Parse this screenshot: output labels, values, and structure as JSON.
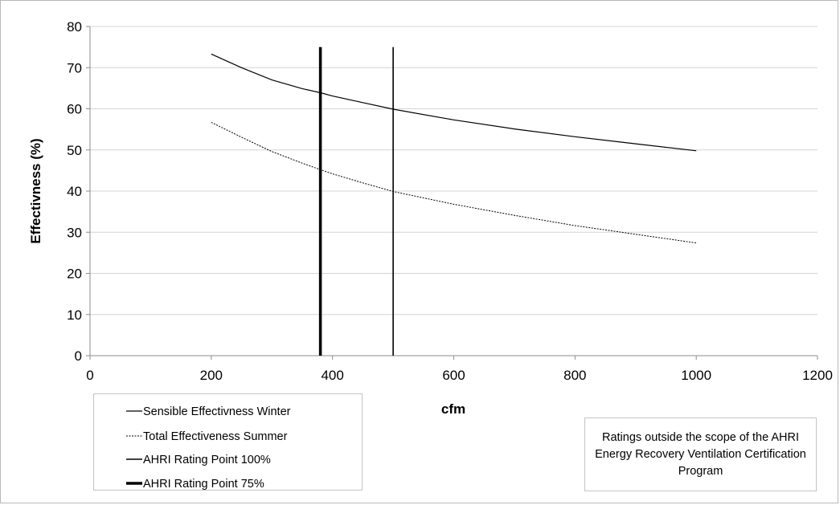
{
  "chart_data": {
    "type": "line",
    "xlabel": "cfm",
    "ylabel": "Effectivness (%)",
    "xlim": [
      0,
      1200
    ],
    "ylim": [
      0,
      80
    ],
    "xticks": [
      "0",
      "200",
      "400",
      "600",
      "800",
      "1000",
      "1200"
    ],
    "yticks": [
      "0",
      "10",
      "20",
      "30",
      "40",
      "50",
      "60",
      "70",
      "80"
    ],
    "grid": true,
    "legend_position": "bottom-left",
    "series": [
      {
        "name": "Sensible Effectivness Winter",
        "style": "solid",
        "x": [
          200,
          250,
          300,
          350,
          380,
          400,
          450,
          500,
          600,
          700,
          800,
          900,
          1000
        ],
        "y": [
          73.3,
          70.0,
          67.0,
          64.9,
          63.9,
          63.1,
          61.5,
          59.9,
          57.3,
          55.1,
          53.2,
          51.5,
          49.8
        ]
      },
      {
        "name": "Total Effectiveness Summer",
        "style": "dashed",
        "x": [
          200,
          250,
          300,
          350,
          380,
          400,
          450,
          500,
          600,
          700,
          800,
          900,
          1000
        ],
        "y": [
          56.7,
          53.1,
          49.6,
          46.8,
          45.2,
          44.2,
          42.0,
          39.9,
          36.8,
          34.1,
          31.6,
          29.5,
          27.4
        ]
      },
      {
        "name": "AHRI Rating Point 100%",
        "style": "vertical-thin",
        "x": [
          500,
          500
        ],
        "y": [
          0,
          75
        ]
      },
      {
        "name": "AHRI Rating Point 75%",
        "style": "vertical-thick",
        "x": [
          380,
          380
        ],
        "y": [
          0,
          75
        ]
      }
    ],
    "annotation": "Ratings outside the scope of the AHRI Energy Recovery Ventilation Certification Program"
  }
}
